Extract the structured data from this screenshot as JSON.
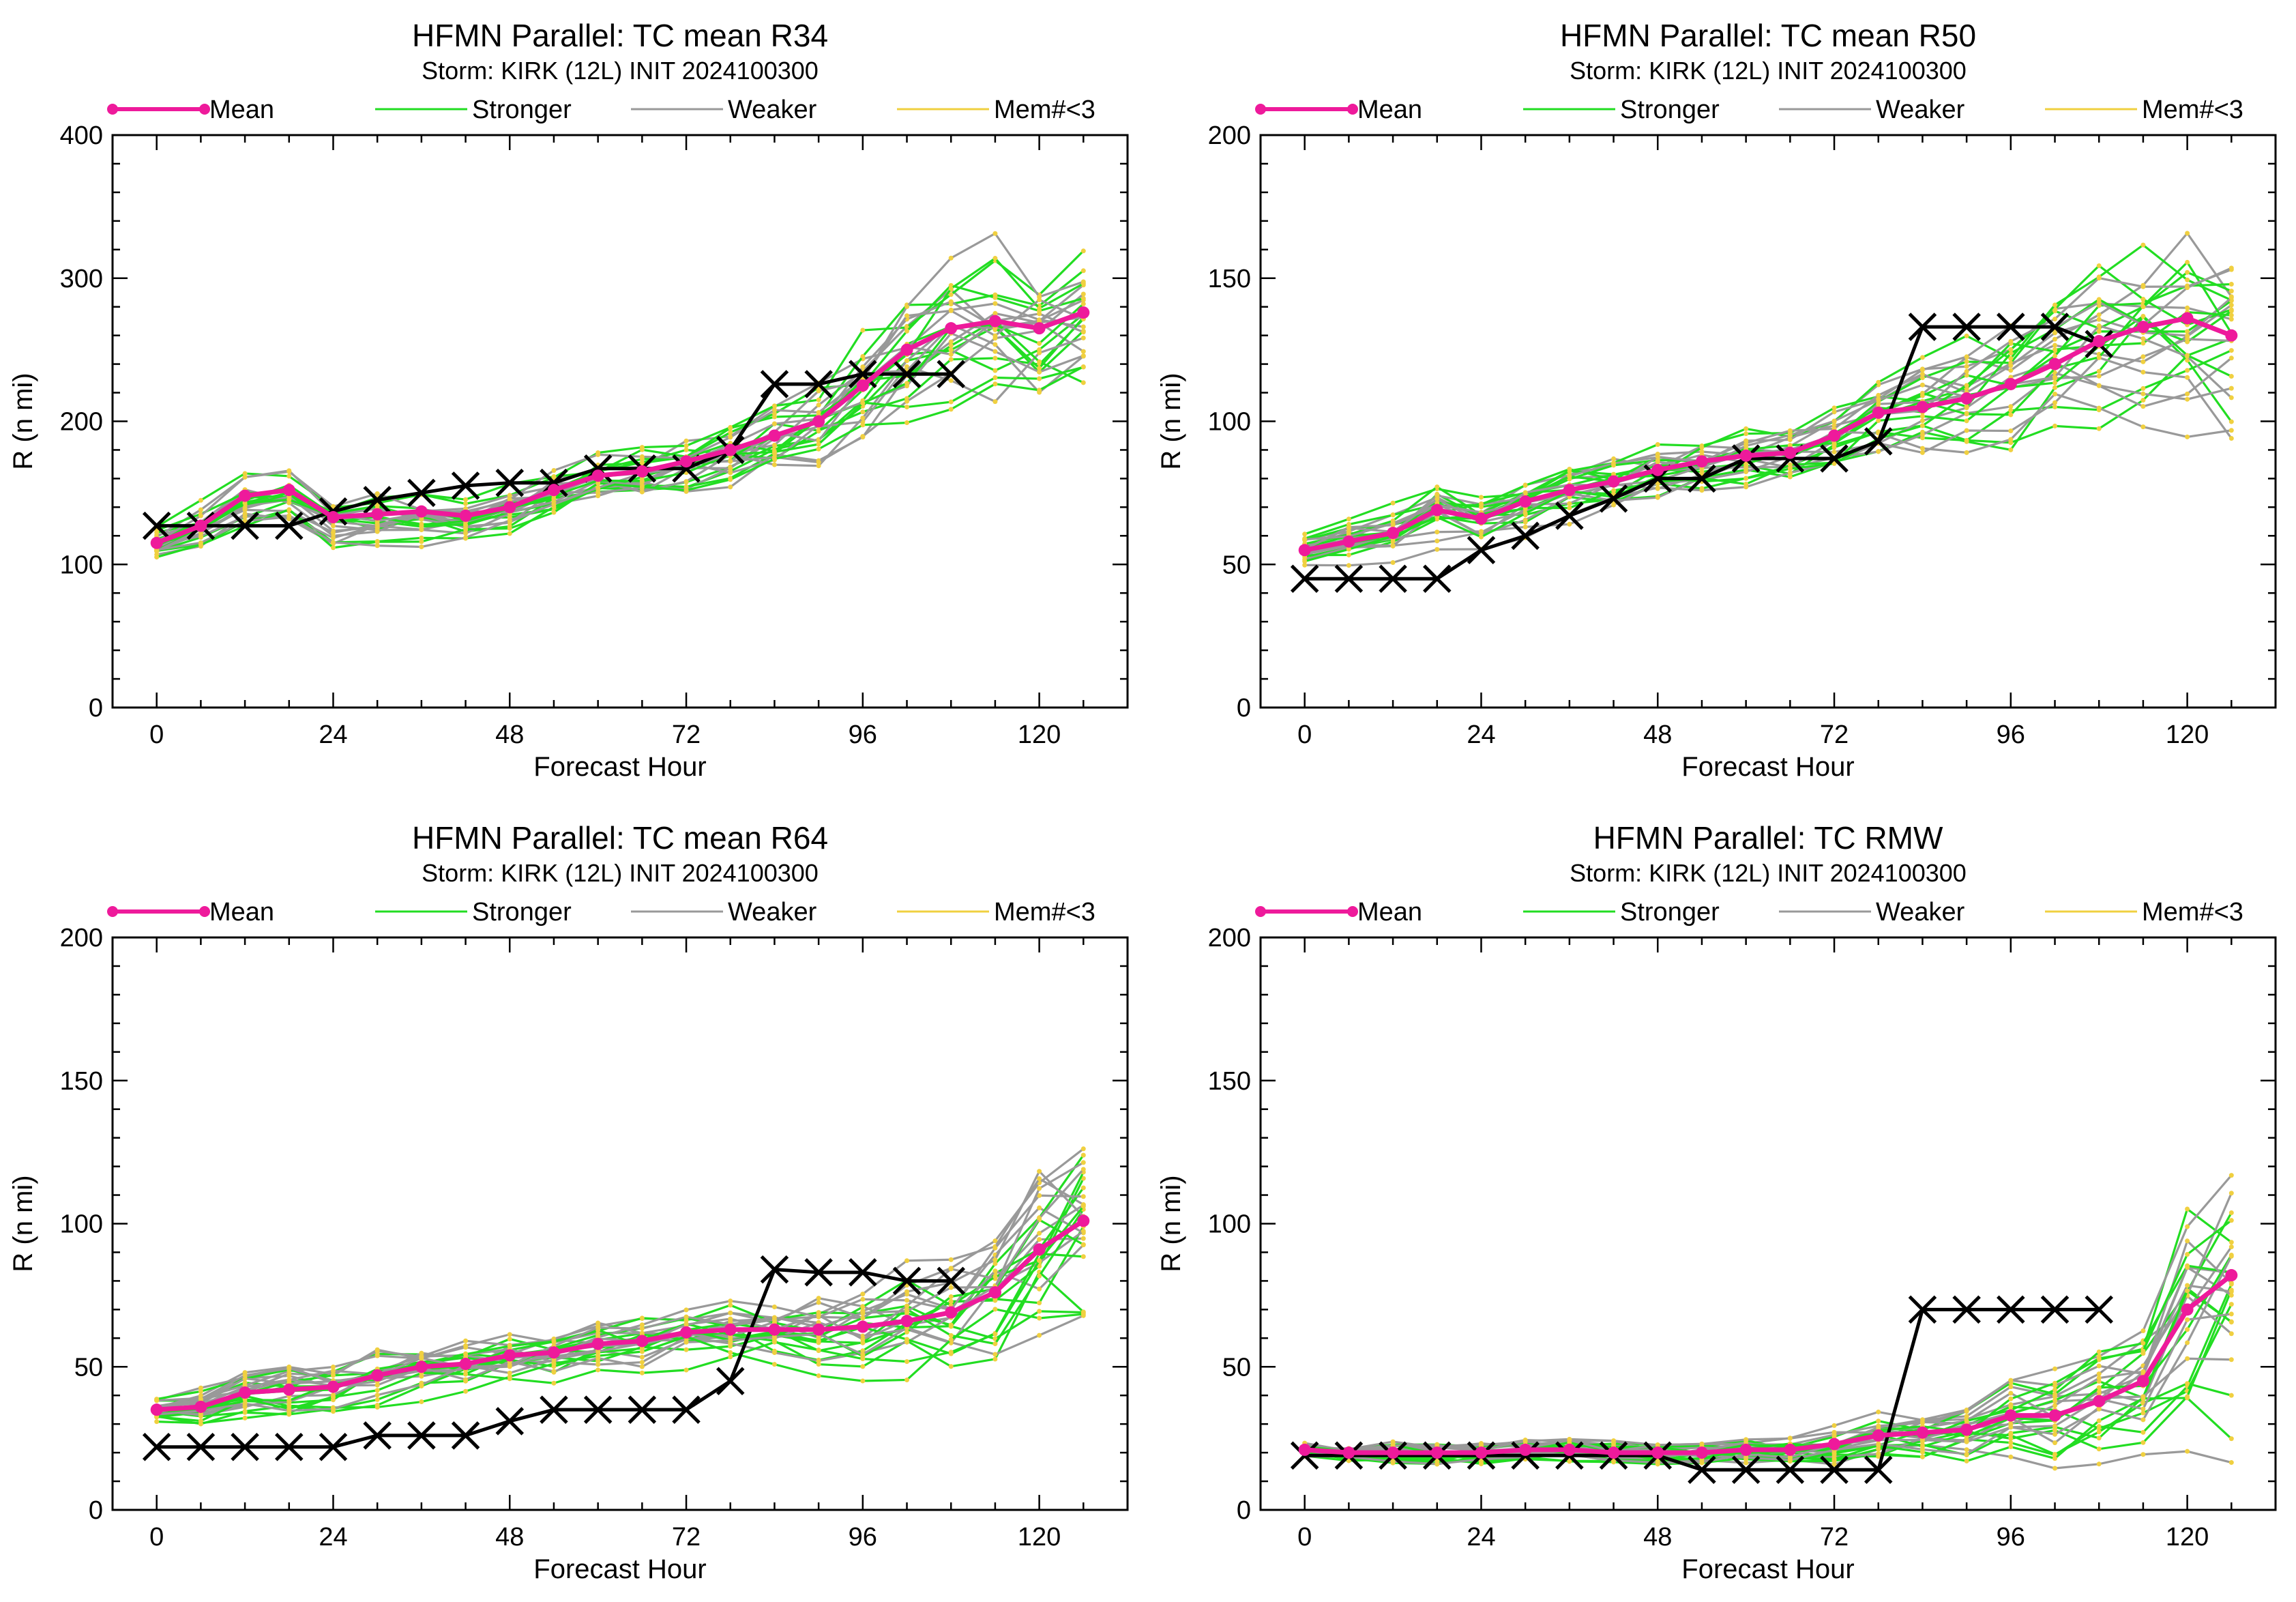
{
  "legend": {
    "mean": "Mean",
    "stronger": "Stronger",
    "weaker": "Weaker",
    "mem": "Mem#<3"
  },
  "colors": {
    "mean": "#ee1a9b",
    "stronger": "#22dd22",
    "weaker": "#999999",
    "mem": "#f0d040",
    "obs": "#000000"
  },
  "chart_data": [
    {
      "type": "line",
      "title": "HFMN Parallel: TC mean R34",
      "subtitle": "Storm: KIRK (12L) INIT 2024100300",
      "xlabel": "Forecast Hour",
      "ylabel": "R (n mi)",
      "xlim": [
        -6,
        132
      ],
      "ylim": [
        0,
        400
      ],
      "xticks": [
        0,
        24,
        48,
        72,
        96,
        120
      ],
      "yticks": [
        0,
        100,
        200,
        300,
        400
      ],
      "x": [
        0,
        6,
        12,
        18,
        24,
        30,
        36,
        42,
        48,
        54,
        60,
        66,
        72,
        78,
        84,
        90,
        96,
        102,
        108,
        114,
        120,
        126
      ],
      "series": [
        {
          "name": "Mean",
          "values": [
            115,
            127,
            148,
            152,
            133,
            135,
            137,
            134,
            140,
            152,
            162,
            165,
            172,
            180,
            190,
            200,
            225,
            250,
            265,
            270,
            265,
            276
          ]
        },
        {
          "name": "Observed",
          "x": [
            0,
            6,
            12,
            18,
            24,
            30,
            36,
            42,
            48,
            54,
            60,
            66,
            72,
            78,
            84,
            90,
            96,
            102,
            108
          ],
          "values": [
            127,
            127,
            127,
            127,
            137,
            145,
            150,
            155,
            157,
            157,
            167,
            167,
            167,
            180,
            226,
            226,
            233,
            233,
            233
          ]
        }
      ],
      "members": {
        "count": 12,
        "spread": [
          8,
          10,
          12,
          13,
          13,
          13,
          13,
          12,
          12,
          13,
          15,
          16,
          17,
          18,
          20,
          24,
          28,
          32,
          34,
          36,
          36,
          38
        ],
        "wiggle": 0.7,
        "seed": 11
      }
    },
    {
      "type": "line",
      "title": "HFMN Parallel: TC mean R50",
      "subtitle": "Storm: KIRK (12L) INIT 2024100300",
      "xlabel": "Forecast Hour",
      "ylabel": "R (n mi)",
      "xlim": [
        -6,
        132
      ],
      "ylim": [
        0,
        200
      ],
      "xticks": [
        0,
        24,
        48,
        72,
        96,
        120
      ],
      "yticks": [
        0,
        50,
        100,
        150,
        200
      ],
      "x": [
        0,
        6,
        12,
        18,
        24,
        30,
        36,
        42,
        48,
        54,
        60,
        66,
        72,
        78,
        84,
        90,
        96,
        102,
        108,
        114,
        120,
        126
      ],
      "series": [
        {
          "name": "Mean",
          "values": [
            55,
            58,
            61,
            69,
            66,
            72,
            76,
            79,
            83,
            86,
            88,
            89,
            95,
            103,
            105,
            108,
            113,
            120,
            128,
            133,
            136,
            130
          ]
        },
        {
          "name": "Observed",
          "x": [
            0,
            6,
            12,
            18,
            24,
            30,
            36,
            42,
            48,
            54,
            60,
            66,
            72,
            78,
            84,
            90,
            96,
            102,
            108
          ],
          "values": [
            45,
            45,
            45,
            45,
            55,
            60,
            67,
            73,
            80,
            80,
            87,
            87,
            87,
            93,
            133,
            133,
            133,
            133,
            127
          ]
        }
      ],
      "members": {
        "count": 12,
        "spread": [
          4,
          5,
          6,
          8,
          7,
          7,
          7,
          7,
          7,
          7,
          7,
          7,
          8,
          9,
          11,
          13,
          15,
          17,
          18,
          20,
          22,
          24
        ],
        "wiggle": 0.7,
        "seed": 23
      }
    },
    {
      "type": "line",
      "title": "HFMN Parallel: TC mean R64",
      "subtitle": "Storm: KIRK (12L) INIT 2024100300",
      "xlabel": "Forecast Hour",
      "ylabel": "R (n mi)",
      "xlim": [
        -6,
        132
      ],
      "ylim": [
        0,
        200
      ],
      "xticks": [
        0,
        24,
        48,
        72,
        96,
        120
      ],
      "yticks": [
        0,
        50,
        100,
        150,
        200
      ],
      "x": [
        0,
        6,
        12,
        18,
        24,
        30,
        36,
        42,
        48,
        54,
        60,
        66,
        72,
        78,
        84,
        90,
        96,
        102,
        108,
        114,
        120,
        126
      ],
      "series": [
        {
          "name": "Mean",
          "values": [
            35,
            36,
            41,
            42,
            43,
            47,
            50,
            51,
            54,
            55,
            58,
            59,
            62,
            63,
            63,
            63,
            64,
            66,
            69,
            76,
            91,
            101
          ]
        },
        {
          "name": "Observed",
          "x": [
            0,
            6,
            12,
            18,
            24,
            30,
            36,
            42,
            48,
            54,
            60,
            66,
            72,
            78,
            84,
            90,
            96,
            102,
            108
          ],
          "values": [
            22,
            22,
            22,
            22,
            22,
            26,
            26,
            26,
            31,
            35,
            35,
            35,
            35,
            45,
            84,
            83,
            83,
            80,
            80
          ]
        }
      ],
      "members": {
        "count": 12,
        "spread": [
          3,
          4,
          5,
          5,
          5,
          6,
          6,
          6,
          6,
          6,
          6,
          6,
          6,
          7,
          8,
          9,
          10,
          12,
          14,
          16,
          22,
          26
        ],
        "wiggle": 0.8,
        "seed": 37
      }
    },
    {
      "type": "line",
      "title": "HFMN Parallel: TC RMW",
      "subtitle": "Storm: KIRK (12L) INIT 2024100300",
      "xlabel": "Forecast Hour",
      "ylabel": "R (n mi)",
      "xlim": [
        -6,
        132
      ],
      "ylim": [
        0,
        200
      ],
      "xticks": [
        0,
        24,
        48,
        72,
        96,
        120
      ],
      "yticks": [
        0,
        50,
        100,
        150,
        200
      ],
      "x": [
        0,
        6,
        12,
        18,
        24,
        30,
        36,
        42,
        48,
        54,
        60,
        66,
        72,
        78,
        84,
        90,
        96,
        102,
        108,
        114,
        120,
        126
      ],
      "series": [
        {
          "name": "Mean",
          "values": [
            21,
            20,
            20,
            20,
            20,
            21,
            21,
            20,
            20,
            20,
            21,
            21,
            23,
            26,
            27,
            28,
            33,
            33,
            38,
            45,
            70,
            82
          ]
        },
        {
          "name": "Observed",
          "x": [
            0,
            6,
            12,
            18,
            24,
            30,
            36,
            42,
            48,
            54,
            60,
            66,
            72,
            78,
            84,
            90,
            96,
            102,
            108
          ],
          "values": [
            19,
            19,
            19,
            19,
            19,
            19,
            19,
            19,
            19,
            14,
            14,
            14,
            14,
            14,
            70,
            70,
            70,
            70,
            70
          ]
        }
      ],
      "members": {
        "count": 12,
        "spread": [
          2,
          2,
          3,
          3,
          3,
          3,
          3,
          3,
          3,
          3,
          3,
          3,
          4,
          5,
          6,
          7,
          9,
          11,
          13,
          16,
          26,
          32
        ],
        "wiggle": 0.8,
        "seed": 53
      }
    }
  ]
}
